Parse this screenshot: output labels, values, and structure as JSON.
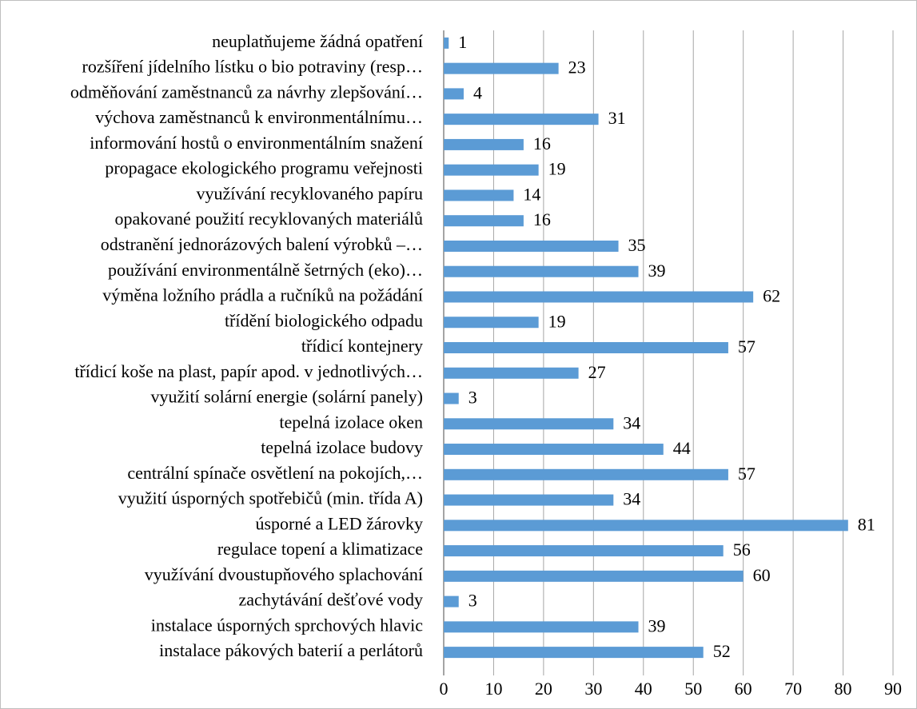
{
  "chart_data": {
    "type": "bar",
    "orientation": "horizontal",
    "categories": [
      "neuplatňujeme žádná opatření",
      "rozšíření jídelního lístku o bio potraviny (resp…",
      "odměňování zaměstnanců za návrhy zlepšování…",
      "výchova zaměstnanců k environmentálnímu…",
      "informování hostů o environmentálním snažení",
      "propagace ekologického programu veřejnosti",
      "využívání recyklovaného papíru",
      "opakované použití recyklovaných materiálů",
      "odstranění jednorázových balení výrobků –…",
      "používání environmentálně šetrných (eko)…",
      "výměna ložního prádla a ručníků na požádání",
      "třídění biologického odpadu",
      "třídicí kontejnery",
      "třídicí koše na plast, papír apod. v jednotlivých…",
      "využití solární energie (solární panely)",
      "tepelná izolace oken",
      "tepelná izolace budovy",
      "centrální spínače osvětlení na pokojích,…",
      "využití úsporných spotřebičů (min. třída A)",
      "úsporné a LED žárovky",
      "regulace topení a klimatizace",
      "využívání dvoustupňového splachování",
      "zachytávání dešťové vody",
      "instalace úsporných sprchových hlavic",
      "instalace pákových baterií a perlátorů"
    ],
    "values": [
      1,
      23,
      4,
      31,
      16,
      19,
      14,
      16,
      35,
      39,
      62,
      19,
      57,
      27,
      3,
      34,
      44,
      57,
      34,
      81,
      56,
      60,
      3,
      39,
      52
    ],
    "color": "#5b9bd5",
    "xlim": [
      0,
      90
    ],
    "xticks": [
      0,
      10,
      20,
      30,
      40,
      50,
      60,
      70,
      80,
      90
    ],
    "grid": true
  }
}
